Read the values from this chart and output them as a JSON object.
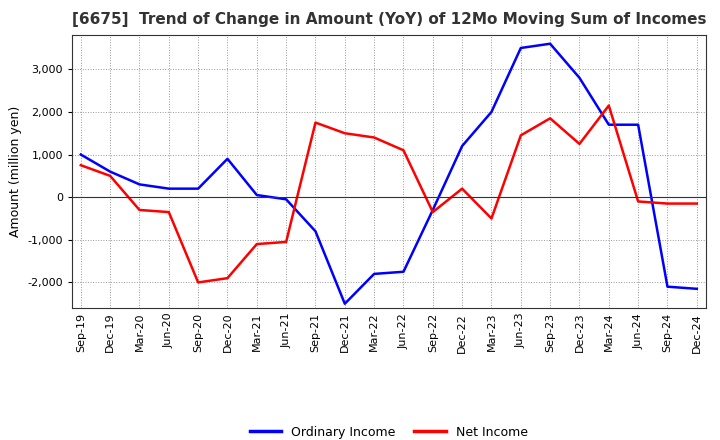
{
  "title": "[6675]  Trend of Change in Amount (YoY) of 12Mo Moving Sum of Incomes",
  "ylabel": "Amount (million yen)",
  "x_labels": [
    "Sep-19",
    "Dec-19",
    "Mar-20",
    "Jun-20",
    "Sep-20",
    "Dec-20",
    "Mar-21",
    "Jun-21",
    "Sep-21",
    "Dec-21",
    "Mar-22",
    "Jun-22",
    "Sep-22",
    "Dec-22",
    "Mar-23",
    "Jun-23",
    "Sep-23",
    "Dec-23",
    "Mar-24",
    "Jun-24",
    "Sep-24",
    "Dec-24"
  ],
  "ordinary_income": [
    1000,
    600,
    300,
    200,
    200,
    900,
    50,
    -50,
    -800,
    -2500,
    -1800,
    -1750,
    -300,
    1200,
    2000,
    3500,
    3600,
    2800,
    1700,
    1700,
    -2100,
    -2150
  ],
  "net_income": [
    750,
    500,
    -300,
    -350,
    -2000,
    -1900,
    -1100,
    -1050,
    1750,
    1500,
    1400,
    1100,
    -350,
    200,
    -500,
    1450,
    1850,
    1250,
    2150,
    -100,
    -150,
    -150
  ],
  "ordinary_color": "#0000FF",
  "net_color": "#FF0000",
  "ylim": [
    -2600,
    3800
  ],
  "yticks": [
    -2000,
    -1000,
    0,
    1000,
    2000,
    3000
  ],
  "bg_color": "#FFFFFF",
  "grid_color": "#999999",
  "legend_labels": [
    "Ordinary Income",
    "Net Income"
  ],
  "title_fontsize": 11,
  "ylabel_fontsize": 9,
  "tick_fontsize": 8
}
